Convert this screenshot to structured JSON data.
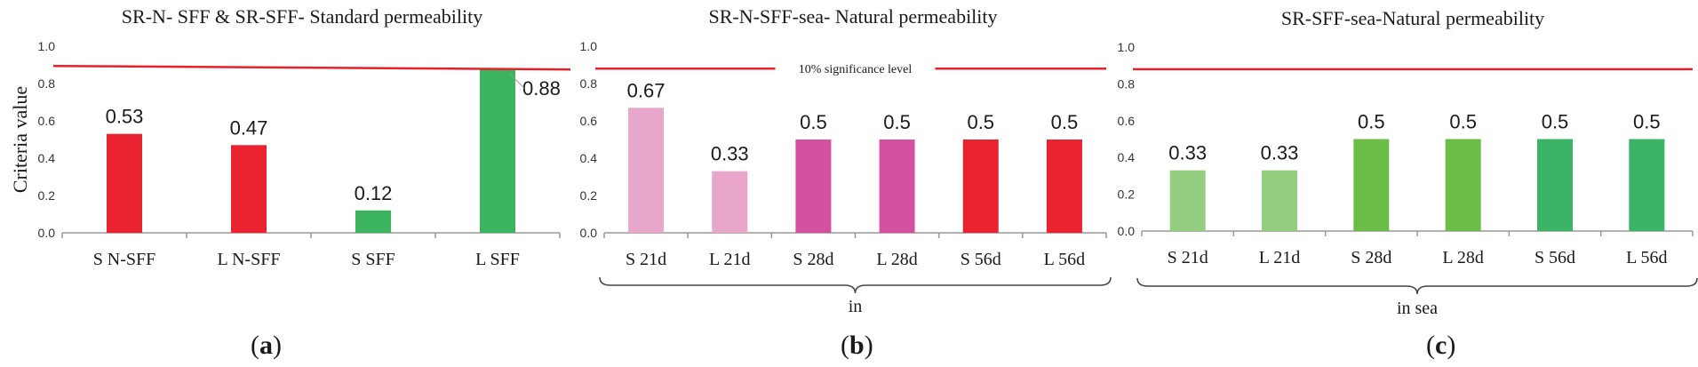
{
  "y_axis_label": "Criteria value",
  "threshold_label": "10% significance level",
  "chart_data": [
    {
      "type": "bar",
      "title": "SR-N- SFF & SR-SFF- Standard permeability",
      "panel": "a",
      "ylabel": "Criteria value",
      "xlabel": "",
      "ylim": [
        0,
        1.0
      ],
      "yticks": [
        "0.0",
        "0.2",
        "0.4",
        "0.6",
        "0.8",
        "1.0"
      ],
      "categories": [
        "S N-SFF",
        "L N-SFF",
        "S SFF",
        "L SFF"
      ],
      "values": [
        0.53,
        0.47,
        0.12,
        0.88
      ],
      "value_labels": [
        "0.53",
        "0.47",
        "0.12",
        "0.88"
      ],
      "colors": [
        "#ea2330",
        "#ea2330",
        "#3cb45f",
        "#3cb45f"
      ],
      "threshold": 0.88,
      "threshold_color": "#e8202a"
    },
    {
      "type": "bar",
      "title": "SR-N-SFF-sea- Natural permeability",
      "panel": "b",
      "xlabel": "in",
      "ylim": [
        0,
        1.0
      ],
      "yticks": [
        "0.0",
        "0.2",
        "0.4",
        "0.6",
        "0.8",
        "1.0"
      ],
      "categories": [
        "S 21d",
        "L 21d",
        "S 28d",
        "L 28d",
        "S 56d",
        "L 56d"
      ],
      "values": [
        0.67,
        0.33,
        0.5,
        0.5,
        0.5,
        0.5
      ],
      "value_labels": [
        "0.67",
        "0.33",
        "0.5",
        "0.5",
        "0.5",
        "0.5"
      ],
      "colors": [
        "#e7a6ca",
        "#e7a6ca",
        "#d451a2",
        "#d451a2",
        "#ea2330",
        "#ea2330"
      ],
      "threshold": 0.88,
      "threshold_label": "10% significance level",
      "threshold_color": "#e8202a"
    },
    {
      "type": "bar",
      "title": "SR-SFF-sea-Natural permeability",
      "panel": "c",
      "xlabel": "in sea",
      "ylim": [
        0,
        1.0
      ],
      "yticks": [
        "0.0",
        "0.2",
        "0.4",
        "0.6",
        "0.8",
        "1.0"
      ],
      "categories": [
        "S 21d",
        "L 21d",
        "S 28d",
        "L 28d",
        "S 56d",
        "L 56d"
      ],
      "values": [
        0.33,
        0.33,
        0.5,
        0.5,
        0.5,
        0.5
      ],
      "value_labels": [
        "0.33",
        "0.33",
        "0.5",
        "0.5",
        "0.5",
        "0.5"
      ],
      "colors": [
        "#94cf7f",
        "#94cf7f",
        "#6cbd45",
        "#6cbd45",
        "#3cb466",
        "#3cb466"
      ],
      "threshold": 0.88,
      "threshold_color": "#e8202a"
    }
  ],
  "panel_labels": [
    "a",
    "b",
    "c"
  ]
}
